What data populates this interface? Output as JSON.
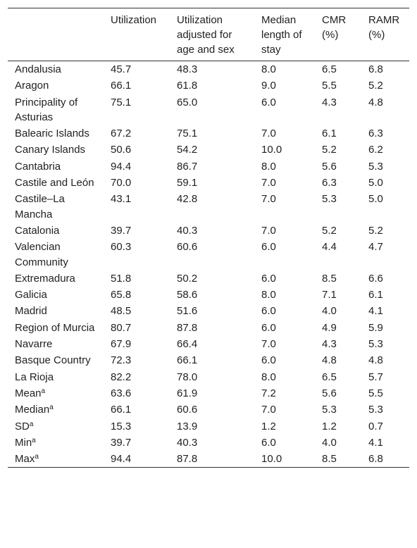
{
  "table": {
    "columns": [
      "",
      "Utilization",
      "Utilization adjusted for age and sex",
      "Median length of stay",
      "CMR (%)",
      "RAMR (%)"
    ],
    "rows": [
      {
        "label": "Andalusia",
        "values": [
          "45.7",
          "48.3",
          "8.0",
          "6.5",
          "6.8"
        ]
      },
      {
        "label": "Aragon",
        "values": [
          "66.1",
          "61.8",
          "9.0",
          "5.5",
          "5.2"
        ]
      },
      {
        "label": "Principality of Asturias",
        "values": [
          "75.1",
          "65.0",
          "6.0",
          "4.3",
          "4.8"
        ]
      },
      {
        "label": "Balearic Islands",
        "values": [
          "67.2",
          "75.1",
          "7.0",
          "6.1",
          "6.3"
        ]
      },
      {
        "label": "Canary Islands",
        "values": [
          "50.6",
          "54.2",
          "10.0",
          "5.2",
          "6.2"
        ]
      },
      {
        "label": "Cantabria",
        "values": [
          "94.4",
          "86.7",
          "8.0",
          "5.6",
          "5.3"
        ]
      },
      {
        "label": "Castile and León",
        "values": [
          "70.0",
          "59.1",
          "7.0",
          "6.3",
          "5.0"
        ]
      },
      {
        "label": "Castile–La Mancha",
        "values": [
          "43.1",
          "42.8",
          "7.0",
          "5.3",
          "5.0"
        ]
      },
      {
        "label": "Catalonia",
        "values": [
          "39.7",
          "40.3",
          "7.0",
          "5.2",
          "5.2"
        ]
      },
      {
        "label": "Valencian Community",
        "values": [
          "60.3",
          "60.6",
          "6.0",
          "4.4",
          "4.7"
        ]
      },
      {
        "label": "Extremadura",
        "values": [
          "51.8",
          "50.2",
          "6.0",
          "8.5",
          "6.6"
        ]
      },
      {
        "label": "Galicia",
        "values": [
          "65.8",
          "58.6",
          "8.0",
          "7.1",
          "6.1"
        ]
      },
      {
        "label": "Madrid",
        "values": [
          "48.5",
          "51.6",
          "6.0",
          "4.0",
          "4.1"
        ]
      },
      {
        "label": "Region of Murcia",
        "values": [
          "80.7",
          "87.8",
          "6.0",
          "4.9",
          "5.9"
        ]
      },
      {
        "label": "Navarre",
        "values": [
          "67.9",
          "66.4",
          "7.0",
          "4.3",
          "5.3"
        ]
      },
      {
        "label": "Basque Country",
        "values": [
          "72.3",
          "66.1",
          "6.0",
          "4.8",
          "4.8"
        ]
      },
      {
        "label": "La Rioja",
        "values": [
          "82.2",
          "78.0",
          "8.0",
          "6.5",
          "5.7"
        ]
      },
      {
        "label": "Mean",
        "footnote": "a",
        "values": [
          "63.6",
          "61.9",
          "7.2",
          "5.6",
          "5.5"
        ]
      },
      {
        "label": "Median",
        "footnote": "a",
        "values": [
          "66.1",
          "60.6",
          "7.0",
          "5.3",
          "5.3"
        ]
      },
      {
        "label": "SD",
        "footnote": "a",
        "values": [
          "15.3",
          "13.9",
          "1.2",
          "1.2",
          "0.7"
        ]
      },
      {
        "label": "Min",
        "footnote": "a",
        "values": [
          "39.7",
          "40.3",
          "6.0",
          "4.0",
          "4.1"
        ]
      },
      {
        "label": "Max",
        "footnote": "a",
        "values": [
          "94.4",
          "87.8",
          "10.0",
          "8.5",
          "6.8"
        ]
      }
    ]
  }
}
